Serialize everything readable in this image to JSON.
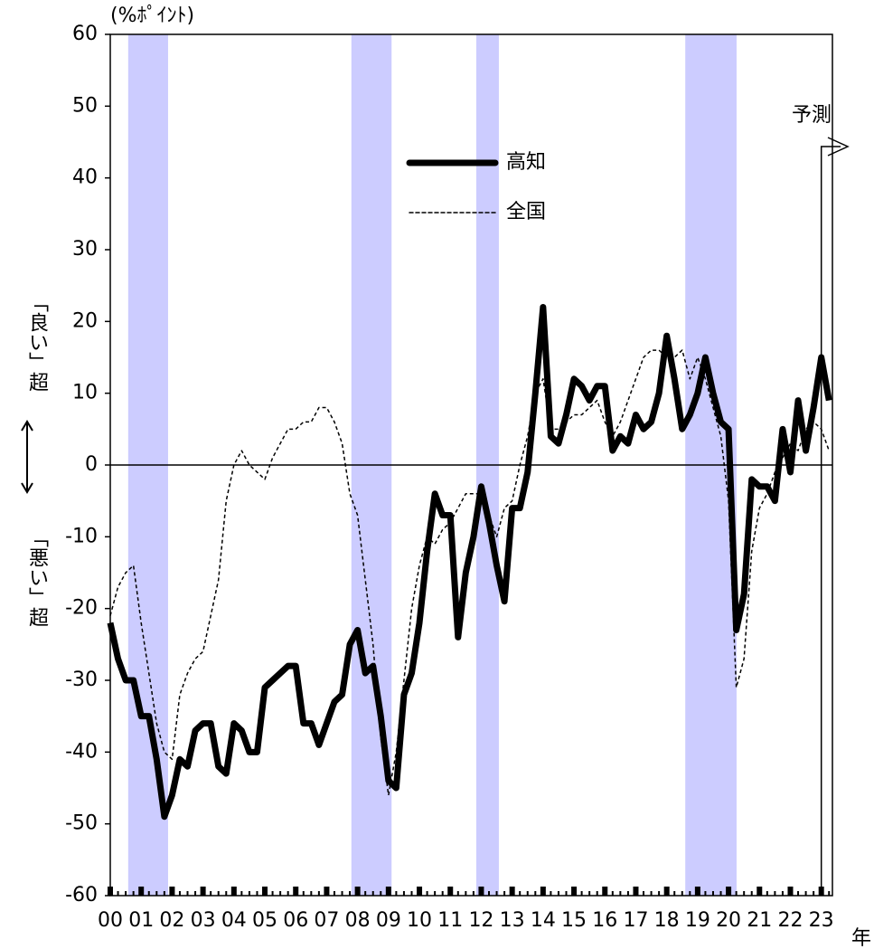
{
  "chart_data": {
    "type": "line",
    "y_unit": "(%ﾎﾟｲﾝﾄ)",
    "x_unit": "年",
    "ylabel_top": "「良い」超",
    "ylabel_bottom": "「悪い」超",
    "annotation": {
      "text": "予測",
      "x": 2023
    },
    "xlim": [
      2000,
      2023.36
    ],
    "ylim": [
      -60,
      60
    ],
    "yticks": [
      -60,
      -50,
      -40,
      -30,
      -20,
      -10,
      0,
      10,
      20,
      30,
      40,
      50,
      60
    ],
    "xticks": [
      {
        "value": 2000,
        "label": "00"
      },
      {
        "value": 2001,
        "label": "01"
      },
      {
        "value": 2002,
        "label": "02"
      },
      {
        "value": 2003,
        "label": "03"
      },
      {
        "value": 2004,
        "label": "04"
      },
      {
        "value": 2005,
        "label": "05"
      },
      {
        "value": 2006,
        "label": "06"
      },
      {
        "value": 2007,
        "label": "07"
      },
      {
        "value": 2008,
        "label": "08"
      },
      {
        "value": 2009,
        "label": "09"
      },
      {
        "value": 2010,
        "label": "10"
      },
      {
        "value": 2011,
        "label": "11"
      },
      {
        "value": 2012,
        "label": "12"
      },
      {
        "value": 2013,
        "label": "13"
      },
      {
        "value": 2014,
        "label": "14"
      },
      {
        "value": 2015,
        "label": "15"
      },
      {
        "value": 2016,
        "label": "16"
      },
      {
        "value": 2017,
        "label": "17"
      },
      {
        "value": 2018,
        "label": "18"
      },
      {
        "value": 2019,
        "label": "19"
      },
      {
        "value": 2020,
        "label": "20"
      },
      {
        "value": 2021,
        "label": "21"
      },
      {
        "value": 2022,
        "label": "22"
      },
      {
        "value": 2023,
        "label": "23"
      }
    ],
    "zero_line": true,
    "shade_color": "#ccccff",
    "shaded_periods": [
      [
        2000.58,
        2001.87
      ],
      [
        2007.8,
        2009.1
      ],
      [
        2011.84,
        2012.57
      ],
      [
        2018.6,
        2020.26
      ]
    ],
    "x": [
      2000,
      2000.25,
      2000.5,
      2000.75,
      2001,
      2001.25,
      2001.5,
      2001.75,
      2002,
      2002.25,
      2002.5,
      2002.75,
      2003,
      2003.25,
      2003.5,
      2003.75,
      2004,
      2004.25,
      2004.5,
      2004.75,
      2005,
      2005.25,
      2005.5,
      2005.75,
      2006,
      2006.25,
      2006.5,
      2006.75,
      2007,
      2007.25,
      2007.5,
      2007.75,
      2008,
      2008.25,
      2008.5,
      2008.75,
      2009,
      2009.25,
      2009.5,
      2009.75,
      2010,
      2010.25,
      2010.5,
      2010.75,
      2011,
      2011.25,
      2011.5,
      2011.75,
      2012,
      2012.25,
      2012.5,
      2012.75,
      2013,
      2013.25,
      2013.5,
      2013.75,
      2014,
      2014.25,
      2014.5,
      2014.75,
      2015,
      2015.25,
      2015.5,
      2015.75,
      2016,
      2016.25,
      2016.5,
      2016.75,
      2017,
      2017.25,
      2017.5,
      2017.75,
      2018,
      2018.25,
      2018.5,
      2018.75,
      2019,
      2019.25,
      2019.5,
      2019.75,
      2020,
      2020.25,
      2020.5,
      2020.75,
      2021,
      2021.25,
      2021.5,
      2021.75,
      2022,
      2022.25,
      2022.5,
      2022.75,
      2023,
      2023.25
    ],
    "series": [
      {
        "name": "高知",
        "color": "#000000",
        "style": "solid",
        "values": [
          -22,
          -27,
          -30,
          -30,
          -35,
          -35,
          -41,
          -49,
          -46,
          -41,
          -42,
          -37,
          -36,
          -36,
          -42,
          -43,
          -36,
          -37,
          -40,
          -40,
          -31,
          -30,
          -29,
          -28,
          -28,
          -36,
          -36,
          -39,
          -36,
          -33,
          -32,
          -25,
          -23,
          -29,
          -28,
          -35,
          -44,
          -45,
          -32,
          -29,
          -22,
          -12,
          -4,
          -7,
          -7,
          -24,
          -15,
          -10,
          -3,
          -8,
          -14,
          -19,
          -6,
          -6,
          -1,
          10,
          22,
          4,
          3,
          7,
          12,
          11,
          9,
          11,
          11,
          2,
          4,
          3,
          7,
          5,
          6,
          10,
          18,
          12,
          5,
          7,
          10,
          15,
          10,
          6,
          5,
          -23,
          -18,
          -2,
          -3,
          -3,
          -5,
          5,
          -1,
          9,
          2,
          8,
          15,
          9
        ]
      },
      {
        "name": "全国",
        "color": "#000000",
        "style": "dashed",
        "values": [
          -21,
          -17,
          -15,
          -14,
          -22,
          -29,
          -36,
          -40,
          -41,
          -32,
          -29,
          -27,
          -26,
          -21,
          -16,
          -5,
          0,
          2,
          0,
          -1,
          -2,
          1,
          3,
          5,
          5,
          6,
          6,
          8,
          8,
          6,
          3,
          -4,
          -7,
          -16,
          -25,
          -38,
          -46,
          -40,
          -30,
          -20,
          -14,
          -10,
          -11,
          -9,
          -8,
          -6,
          -4,
          -4,
          -4,
          -7,
          -10,
          -6,
          -5,
          0,
          4,
          10,
          12,
          5,
          5,
          6,
          7,
          7,
          8,
          9,
          6,
          4,
          6,
          9,
          12,
          15,
          16,
          16,
          15,
          15,
          16,
          12,
          15,
          12,
          8,
          4,
          -5,
          -31,
          -27,
          -12,
          -6,
          -4,
          -1,
          1,
          3,
          2,
          5,
          6,
          5,
          2
        ]
      }
    ]
  }
}
